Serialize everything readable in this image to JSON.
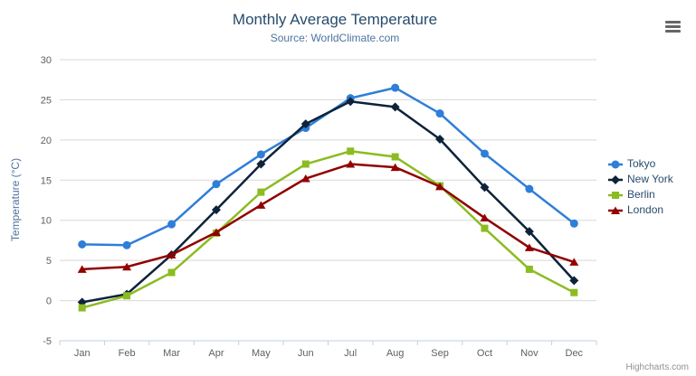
{
  "chart_data": {
    "type": "line",
    "title": "Monthly Average Temperature",
    "subtitle": "Source: WorldClimate.com",
    "xlabel": "",
    "ylabel": "Temperature (°C)",
    "categories": [
      "Jan",
      "Feb",
      "Mar",
      "Apr",
      "May",
      "Jun",
      "Jul",
      "Aug",
      "Sep",
      "Oct",
      "Nov",
      "Dec"
    ],
    "ylim": [
      -5,
      30
    ],
    "ytick_step": 5,
    "grid": "horizontal-only",
    "legend_position": "right",
    "series": [
      {
        "name": "Tokyo",
        "color": "#2f7ed8",
        "marker": "circle",
        "values": [
          7.0,
          6.9,
          9.5,
          14.5,
          18.2,
          21.5,
          25.2,
          26.5,
          23.3,
          18.3,
          13.9,
          9.6
        ]
      },
      {
        "name": "New York",
        "color": "#0d233a",
        "marker": "diamond",
        "values": [
          -0.2,
          0.8,
          5.7,
          11.3,
          17.0,
          22.0,
          24.8,
          24.1,
          20.1,
          14.1,
          8.6,
          2.5
        ]
      },
      {
        "name": "Berlin",
        "color": "#8bbc21",
        "marker": "square",
        "values": [
          -0.9,
          0.6,
          3.5,
          8.4,
          13.5,
          17.0,
          18.6,
          17.9,
          14.3,
          9.0,
          3.9,
          1.0
        ]
      },
      {
        "name": "London",
        "color": "#910000",
        "marker": "triangle",
        "values": [
          3.9,
          4.2,
          5.7,
          8.5,
          11.9,
          15.2,
          17.0,
          16.6,
          14.2,
          10.3,
          6.6,
          4.8
        ]
      }
    ]
  },
  "colors": {
    "title": "#274b6d",
    "subtitle": "#4d759e",
    "axis_labels": "#606060",
    "gridline": "#d8d8d8",
    "axis_line": "#c0d0e0"
  },
  "icons": {
    "export_menu": "hamburger-icon"
  },
  "credits": "Highcharts.com"
}
